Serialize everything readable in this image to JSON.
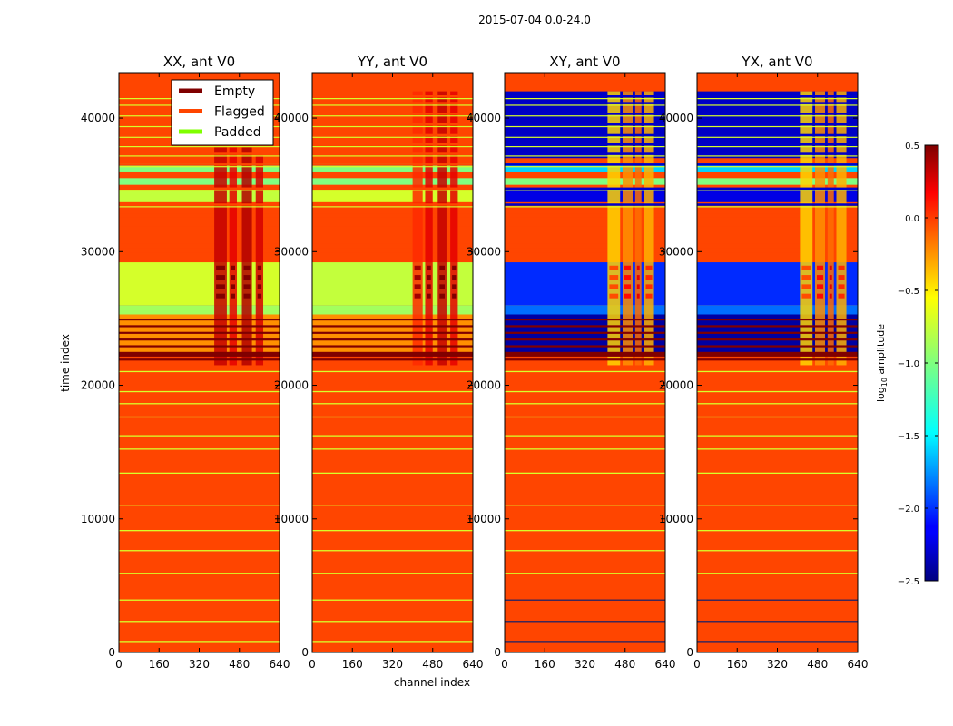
{
  "figure": {
    "suptitle": "2015-07-04 0.0-24.0",
    "xlabel": "channel index",
    "ylabel": "time index",
    "colorbar_label_main": "log",
    "colorbar_label_sub": "10",
    "colorbar_label_tail": " amplitude"
  },
  "chart_data": {
    "type": "heatmap",
    "colormap": "jet",
    "xlim": [
      0,
      640
    ],
    "ylim": [
      0,
      43400
    ],
    "x_ticks": [
      0,
      160,
      320,
      480,
      640
    ],
    "y_ticks": [
      0,
      10000,
      20000,
      30000,
      40000
    ],
    "y_tick_labels": [
      "0",
      "10000",
      "20000",
      "30000",
      "40000"
    ],
    "colorbar": {
      "range": [
        -2.5,
        0.5
      ],
      "ticks": [
        -2.5,
        -2.0,
        -1.5,
        -1.0,
        -0.5,
        0.0,
        0.5
      ],
      "tick_labels": [
        "−2.5",
        "−2.0",
        "−1.5",
        "−1.0",
        "−0.5",
        "0.0",
        "0.5"
      ]
    },
    "legend": {
      "placement": "top, first panel",
      "entries": [
        {
          "label": "Empty",
          "color": "#800000"
        },
        {
          "label": "Flagged",
          "color": "#ff4500"
        },
        {
          "label": "Padded",
          "color": "#7fff00"
        }
      ]
    },
    "colors": {
      "flagged": "#ff4500",
      "empty": "#800000",
      "padded": "#7fff00",
      "thin_line": "#d8ff2a"
    },
    "thin_lines_time": [
      800,
      2300,
      3900,
      5900,
      7600,
      9100,
      11000,
      13400,
      15200,
      16200,
      17600,
      18600,
      19500,
      21000
    ],
    "empty_rows_time": [
      21900,
      22400,
      22900,
      23400,
      23900,
      24400,
      24900
    ],
    "header_lines_time": [
      33500,
      34700,
      36500,
      37300,
      38000,
      38700,
      39500,
      40300,
      41100,
      41600
    ],
    "panels": [
      {
        "title": "XX, ant V0",
        "kind": "parallel",
        "bands": [
          {
            "t0": 22200,
            "t1": 25300,
            "value": -0.3
          },
          {
            "t0": 25300,
            "t1": 26000,
            "value": -0.9
          },
          {
            "t0": 26000,
            "t1": 29200,
            "value": -0.75
          },
          {
            "t0": 33700,
            "t1": 34700,
            "value": -0.8
          },
          {
            "t0": 35000,
            "t1": 35500,
            "value": -1.0
          },
          {
            "t0": 36000,
            "t1": 36600,
            "value": -1.0
          }
        ],
        "hot_channels": [
          {
            "c0": 380,
            "c1": 430,
            "t0": 21500,
            "t1": 37800,
            "value": 0.3
          },
          {
            "c0": 440,
            "c1": 470,
            "t0": 21500,
            "t1": 37800,
            "value": 0.2
          },
          {
            "c0": 490,
            "c1": 530,
            "t0": 21500,
            "t1": 37800,
            "value": 0.35
          },
          {
            "c0": 545,
            "c1": 575,
            "t0": 21500,
            "t1": 37200,
            "value": 0.25
          }
        ]
      },
      {
        "title": "YY, ant V0",
        "kind": "parallel",
        "bands": [
          {
            "t0": 22200,
            "t1": 25300,
            "value": -0.3
          },
          {
            "t0": 25300,
            "t1": 26000,
            "value": -0.9
          },
          {
            "t0": 26000,
            "t1": 29200,
            "value": -0.8
          },
          {
            "t0": 33700,
            "t1": 34700,
            "value": -0.75
          },
          {
            "t0": 35000,
            "t1": 35500,
            "value": -1.0
          },
          {
            "t0": 36000,
            "t1": 36600,
            "value": -1.0
          }
        ],
        "hot_channels": [
          {
            "c0": 400,
            "c1": 440,
            "t0": 21500,
            "t1": 42000,
            "value": 0.0
          },
          {
            "c0": 450,
            "c1": 480,
            "t0": 21500,
            "t1": 42000,
            "value": 0.2
          },
          {
            "c0": 500,
            "c1": 535,
            "t0": 21500,
            "t1": 42000,
            "value": 0.3
          },
          {
            "c0": 550,
            "c1": 580,
            "t0": 21500,
            "t1": 42000,
            "value": 0.2
          }
        ]
      },
      {
        "title": "XY, ant V0",
        "kind": "cross",
        "bands": [
          {
            "t0": 22200,
            "t1": 25300,
            "value": -2.4
          },
          {
            "t0": 25300,
            "t1": 26000,
            "value": -1.8
          },
          {
            "t0": 26000,
            "t1": 29200,
            "value": -2.0
          },
          {
            "t0": 33700,
            "t1": 34700,
            "value": -2.2
          },
          {
            "t0": 35000,
            "t1": 35500,
            "value": -1.0
          },
          {
            "t0": 36000,
            "t1": 36600,
            "value": -1.5
          },
          {
            "t0": 37000,
            "t1": 42000,
            "value": -2.3
          }
        ],
        "hot_channels": [
          {
            "c0": 410,
            "c1": 460,
            "t0": 21500,
            "t1": 42000,
            "value": -0.5
          },
          {
            "c0": 470,
            "c1": 510,
            "t0": 21500,
            "t1": 42000,
            "value": -0.3
          },
          {
            "c0": 520,
            "c1": 545,
            "t0": 21500,
            "t1": 42000,
            "value": -0.2
          },
          {
            "c0": 555,
            "c1": 595,
            "t0": 21500,
            "t1": 42000,
            "value": -0.4
          }
        ]
      },
      {
        "title": "YX, ant V0",
        "kind": "cross",
        "bands": [
          {
            "t0": 22200,
            "t1": 25300,
            "value": -2.4
          },
          {
            "t0": 25300,
            "t1": 26000,
            "value": -1.8
          },
          {
            "t0": 26000,
            "t1": 29200,
            "value": -2.0
          },
          {
            "t0": 33700,
            "t1": 34700,
            "value": -2.2
          },
          {
            "t0": 35000,
            "t1": 35500,
            "value": -1.0
          },
          {
            "t0": 36000,
            "t1": 36600,
            "value": -1.5
          },
          {
            "t0": 37000,
            "t1": 42000,
            "value": -2.3
          }
        ],
        "hot_channels": [
          {
            "c0": 410,
            "c1": 460,
            "t0": 21500,
            "t1": 42000,
            "value": -0.5
          },
          {
            "c0": 470,
            "c1": 510,
            "t0": 21500,
            "t1": 42000,
            "value": -0.3
          },
          {
            "c0": 520,
            "c1": 545,
            "t0": 21500,
            "t1": 42000,
            "value": -0.2
          },
          {
            "c0": 555,
            "c1": 595,
            "t0": 21500,
            "t1": 42000,
            "value": -0.4
          }
        ]
      }
    ]
  }
}
